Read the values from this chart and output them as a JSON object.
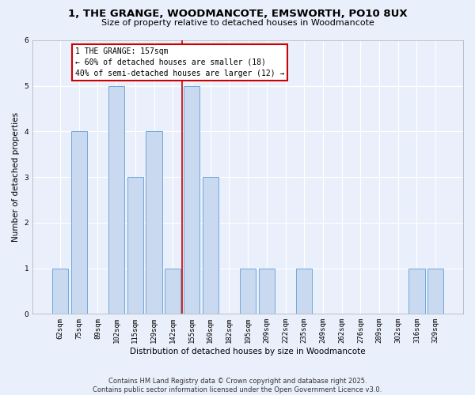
{
  "title": "1, THE GRANGE, WOODMANCOTE, EMSWORTH, PO10 8UX",
  "subtitle": "Size of property relative to detached houses in Woodmancote",
  "xlabel": "Distribution of detached houses by size in Woodmancote",
  "ylabel": "Number of detached properties",
  "categories": [
    "62sqm",
    "75sqm",
    "89sqm",
    "102sqm",
    "115sqm",
    "129sqm",
    "142sqm",
    "155sqm",
    "169sqm",
    "182sqm",
    "195sqm",
    "209sqm",
    "222sqm",
    "235sqm",
    "249sqm",
    "262sqm",
    "276sqm",
    "289sqm",
    "302sqm",
    "316sqm",
    "329sqm"
  ],
  "values": [
    1,
    4,
    0,
    5,
    3,
    4,
    1,
    5,
    3,
    0,
    1,
    1,
    0,
    1,
    0,
    0,
    0,
    0,
    0,
    1,
    1
  ],
  "bar_color": "#c9d9f0",
  "bar_edge_color": "#6fa8dc",
  "highlight_line_index": 7,
  "highlight_line_color": "#cc0000",
  "ylim": [
    0,
    6
  ],
  "yticks": [
    0,
    1,
    2,
    3,
    4,
    5,
    6
  ],
  "annotation_title": "1 THE GRANGE: 157sqm",
  "annotation_line1": "← 60% of detached houses are smaller (18)",
  "annotation_line2": "40% of semi-detached houses are larger (12) →",
  "annotation_box_color": "#ffffff",
  "annotation_box_edge_color": "#cc0000",
  "footer_line1": "Contains HM Land Registry data © Crown copyright and database right 2025.",
  "footer_line2": "Contains public sector information licensed under the Open Government Licence v3.0.",
  "background_color": "#eaf0fb",
  "grid_color": "#ffffff",
  "title_fontsize": 9.5,
  "subtitle_fontsize": 8,
  "axis_label_fontsize": 7.5,
  "tick_fontsize": 6.5,
  "footer_fontsize": 6,
  "annotation_fontsize": 7
}
